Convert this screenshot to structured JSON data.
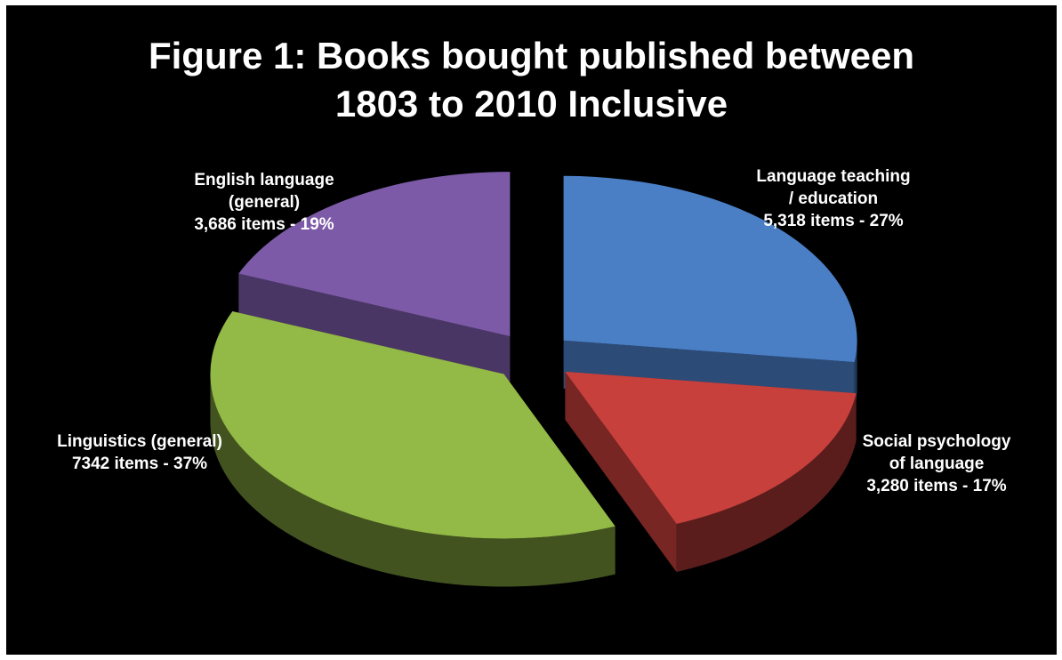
{
  "chart_data": {
    "type": "pie",
    "title_lines": [
      "Figure 1: Books bought published between",
      "1803 to 2010 Inclusive"
    ],
    "slices": [
      {
        "name": "Language teaching / education",
        "label_lines": [
          "Language teaching",
          "/ education",
          "5,318 items - 27%"
        ],
        "value": 5318,
        "percent": 27,
        "color": "#4a7fc6"
      },
      {
        "name": "Social psychology of language",
        "label_lines": [
          "Social psychology",
          "of language",
          "3,280 items - 17%"
        ],
        "value": 3280,
        "percent": 17,
        "color": "#c8403c"
      },
      {
        "name": "Linguistics (general)",
        "label_lines": [
          "Linguistics (general)",
          "7342 items - 37%"
        ],
        "value": 7342,
        "percent": 37,
        "color": "#93b946"
      },
      {
        "name": "English language (general)",
        "label_lines": [
          "English language",
          "(general)",
          "3,686 items - 19%"
        ],
        "value": 3686,
        "percent": 19,
        "color": "#7c5aa7"
      }
    ],
    "style": "3D exploded pie",
    "background": "#000000"
  }
}
